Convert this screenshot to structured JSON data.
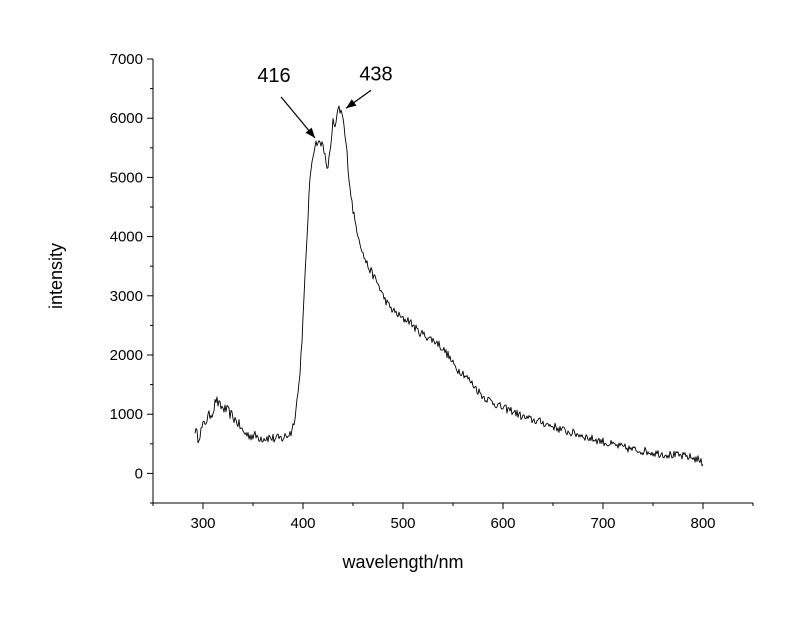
{
  "chart_data": {
    "type": "line",
    "title": "",
    "xlabel": "wavelength/nm",
    "ylabel": "intensity",
    "xlim": [
      250,
      850
    ],
    "ylim": [
      -500,
      7000
    ],
    "xticks": [
      300,
      400,
      500,
      600,
      700,
      800
    ],
    "xtick_labels": [
      "300",
      "400",
      "500",
      "600",
      "700",
      "800"
    ],
    "yticks": [
      0,
      1000,
      2000,
      3000,
      4000,
      5000,
      6000,
      7000
    ],
    "ytick_labels": [
      "0",
      "1000",
      "2000",
      "3000",
      "4000",
      "5000",
      "6000",
      "7000"
    ],
    "grid": false,
    "legend": "none",
    "line_color": "#000000",
    "series": [
      {
        "x": [
          292,
          295,
          300,
          305,
          310,
          313,
          316,
          320,
          325,
          330,
          335,
          340,
          345,
          350,
          355,
          360,
          365,
          370,
          375,
          380,
          385,
          388,
          390,
          393,
          396,
          398,
          400,
          402,
          404,
          406,
          408,
          410,
          412,
          414,
          416,
          418,
          420,
          422,
          424,
          426,
          428,
          430,
          432,
          434,
          436,
          438,
          440,
          442,
          444,
          446,
          448,
          450,
          452,
          455,
          458,
          460,
          465,
          470,
          475,
          480,
          485,
          490,
          495,
          500,
          505,
          510,
          515,
          520,
          525,
          530,
          535,
          540,
          545,
          550,
          555,
          560,
          565,
          570,
          575,
          580,
          585,
          590,
          595,
          600,
          605,
          610,
          615,
          620,
          625,
          630,
          635,
          640,
          645,
          650,
          655,
          660,
          665,
          670,
          675,
          680,
          685,
          690,
          695,
          700,
          705,
          710,
          715,
          720,
          725,
          730,
          735,
          740,
          745,
          750,
          755,
          760,
          765,
          770,
          775,
          780,
          785,
          790,
          795,
          800
        ],
        "values": [
          750,
          600,
          800,
          950,
          1050,
          1250,
          1150,
          1100,
          1050,
          950,
          850,
          700,
          650,
          640,
          620,
          600,
          610,
          590,
          580,
          600,
          650,
          700,
          800,
          1100,
          1500,
          2000,
          2600,
          3300,
          4000,
          4700,
          5150,
          5400,
          5550,
          5600,
          5580,
          5550,
          5600,
          5350,
          5100,
          5300,
          5600,
          5950,
          5800,
          6050,
          6150,
          6100,
          6000,
          5700,
          5400,
          5000,
          4700,
          4450,
          4250,
          4050,
          3850,
          3700,
          3500,
          3350,
          3200,
          3000,
          2850,
          2750,
          2680,
          2600,
          2600,
          2500,
          2400,
          2350,
          2300,
          2250,
          2200,
          2100,
          2000,
          1850,
          1750,
          1700,
          1600,
          1500,
          1400,
          1300,
          1250,
          1200,
          1150,
          1100,
          1080,
          1050,
          1000,
          950,
          920,
          900,
          880,
          860,
          820,
          800,
          760,
          730,
          700,
          680,
          660,
          640,
          600,
          580,
          560,
          540,
          500,
          480,
          460,
          440,
          420,
          400,
          390,
          380,
          370,
          350,
          340,
          330,
          320,
          310,
          300,
          290,
          280,
          260,
          240,
          150
        ]
      }
    ],
    "annotations": [
      {
        "text": "416",
        "x": 416,
        "y": 5600
      },
      {
        "text": "438",
        "x": 438,
        "y": 6100
      }
    ]
  }
}
